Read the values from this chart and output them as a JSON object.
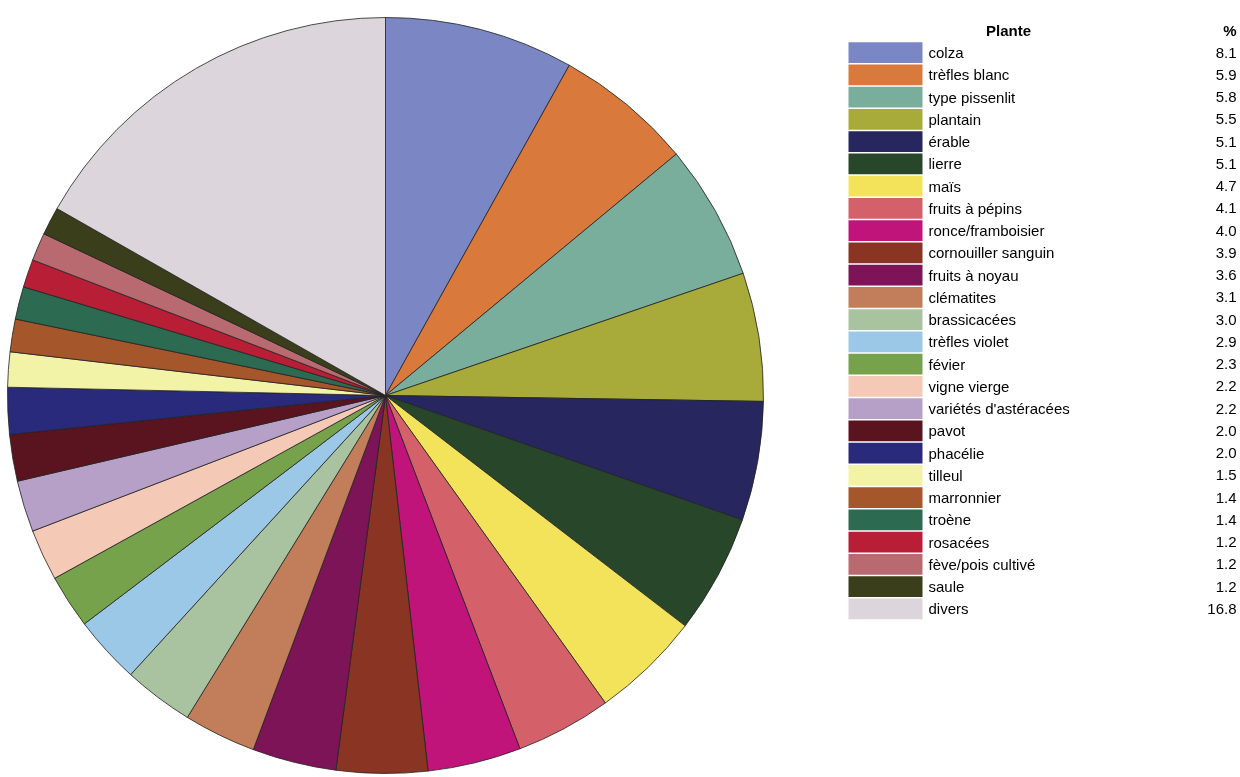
{
  "chart_data": {
    "type": "pie",
    "legend_title": "Plante",
    "annotations": [
      "%"
    ],
    "legend": "right",
    "value_labels": [
      "8.1",
      "5.9",
      "5.8",
      "5.5",
      "5.1",
      "5.1",
      "4.7",
      "4.1",
      "4.0",
      "3.9",
      "3.6",
      "3.1",
      "3.0",
      "2.9",
      "2.3",
      "2.2",
      "2.2",
      "2.0",
      "2.0",
      "1.5",
      "1.4",
      "1.4",
      "1.2",
      "1.2",
      "1.2",
      "16.8"
    ],
    "categories": [
      "colza",
      "trèfles blanc",
      "type pissenlit",
      "plantain",
      "érable",
      "lierre",
      "maïs",
      "fruits à pépins",
      "ronce/framboisier",
      "cornouiller sanguin",
      "fruits à noyau",
      "clématites",
      "brassicacées",
      "trèfles violet",
      "févier",
      "vigne vierge",
      "variétés d'astéracées",
      "pavot",
      "phacélie",
      "tilleul",
      "marronnier",
      "troène",
      "rosacées",
      "fève/pois cultivé",
      "saule",
      "divers"
    ],
    "values": [
      8.1,
      5.9,
      5.8,
      5.5,
      5.1,
      5.1,
      4.7,
      4.1,
      4.0,
      3.9,
      3.6,
      3.1,
      3.0,
      2.9,
      2.3,
      2.2,
      2.2,
      2.0,
      2.0,
      1.5,
      1.4,
      1.4,
      1.2,
      1.2,
      1.2,
      16.8
    ],
    "colors": [
      "#7b86c4",
      "#d9793c",
      "#79ad9c",
      "#a8ab3a",
      "#27265e",
      "#28472a",
      "#f3e35a",
      "#d4606a",
      "#c0147a",
      "#8a3523",
      "#7d1458",
      "#c27e5a",
      "#a9c3a0",
      "#9cc8e8",
      "#77a24c",
      "#f4c9b6",
      "#b7a0c8",
      "#5a1420",
      "#2a2a7c",
      "#f2f3a6",
      "#a5562a",
      "#2d6a52",
      "#b81e35",
      "#b86a70",
      "#3a3e1a",
      "#dcd6dc"
    ]
  }
}
